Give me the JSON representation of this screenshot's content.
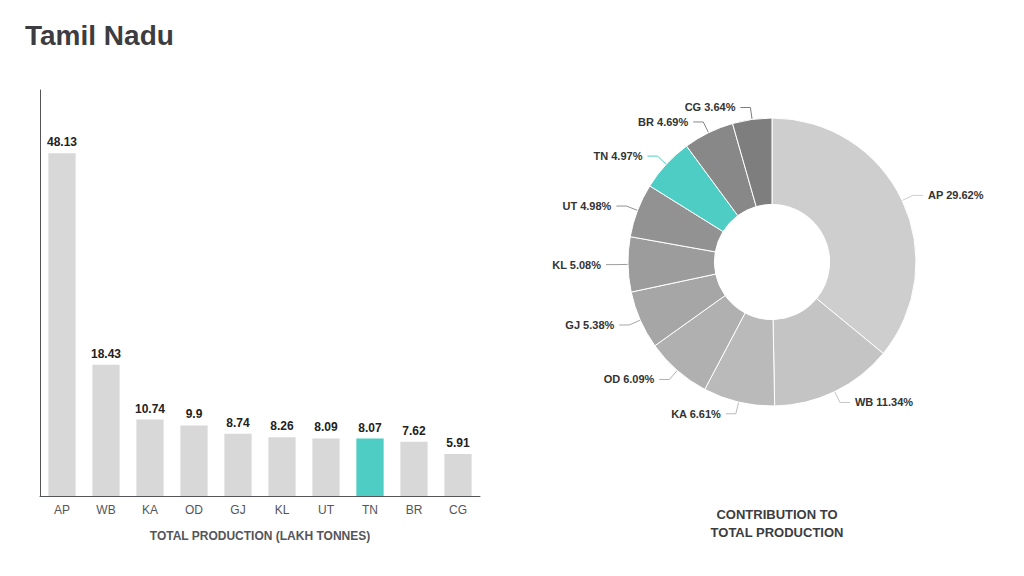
{
  "chart_data": [
    {
      "type": "bar",
      "title": "Tamil Nadu",
      "categories": [
        "AP",
        "WB",
        "KA",
        "OD",
        "GJ",
        "KL",
        "UT",
        "TN",
        "BR",
        "CG"
      ],
      "values": [
        48.13,
        18.43,
        10.74,
        9.9,
        8.74,
        8.26,
        8.09,
        8.07,
        7.62,
        5.91
      ],
      "colors": [
        "#d8d8d8",
        "#d8d8d8",
        "#d8d8d8",
        "#d8d8d8",
        "#d8d8d8",
        "#d8d8d8",
        "#d8d8d8",
        "#4ecdc4",
        "#d8d8d8",
        "#d8d8d8"
      ],
      "xlabel": "TOTAL PRODUCTION (LAKH TONNES)",
      "ylim": [
        0,
        57
      ],
      "tick_labels": "x",
      "grid": false,
      "data_labels": true
    },
    {
      "type": "pie",
      "title": "CONTRIBUTION TO\nTOTAL PRODUCTION",
      "categories": [
        "AP",
        "WB",
        "KA",
        "OD",
        "GJ",
        "KL",
        "UT",
        "TN",
        "BR",
        "CG"
      ],
      "values": [
        29.62,
        11.34,
        6.61,
        6.09,
        5.38,
        5.08,
        4.98,
        4.97,
        4.69,
        3.64
      ],
      "value_labels": [
        "29.62%",
        "11.34%",
        "6.61%",
        "6.09%",
        "5.38%",
        "5.08%",
        "4.98%",
        "4.97%",
        "4.69%",
        "3.64%"
      ],
      "colors": [
        "#cecece",
        "#c4c4c4",
        "#bababa",
        "#b0b0b0",
        "#a6a6a6",
        "#9c9c9c",
        "#929292",
        "#4ecdc4",
        "#888888",
        "#7e7e7e"
      ],
      "data_labels": true
    }
  ]
}
